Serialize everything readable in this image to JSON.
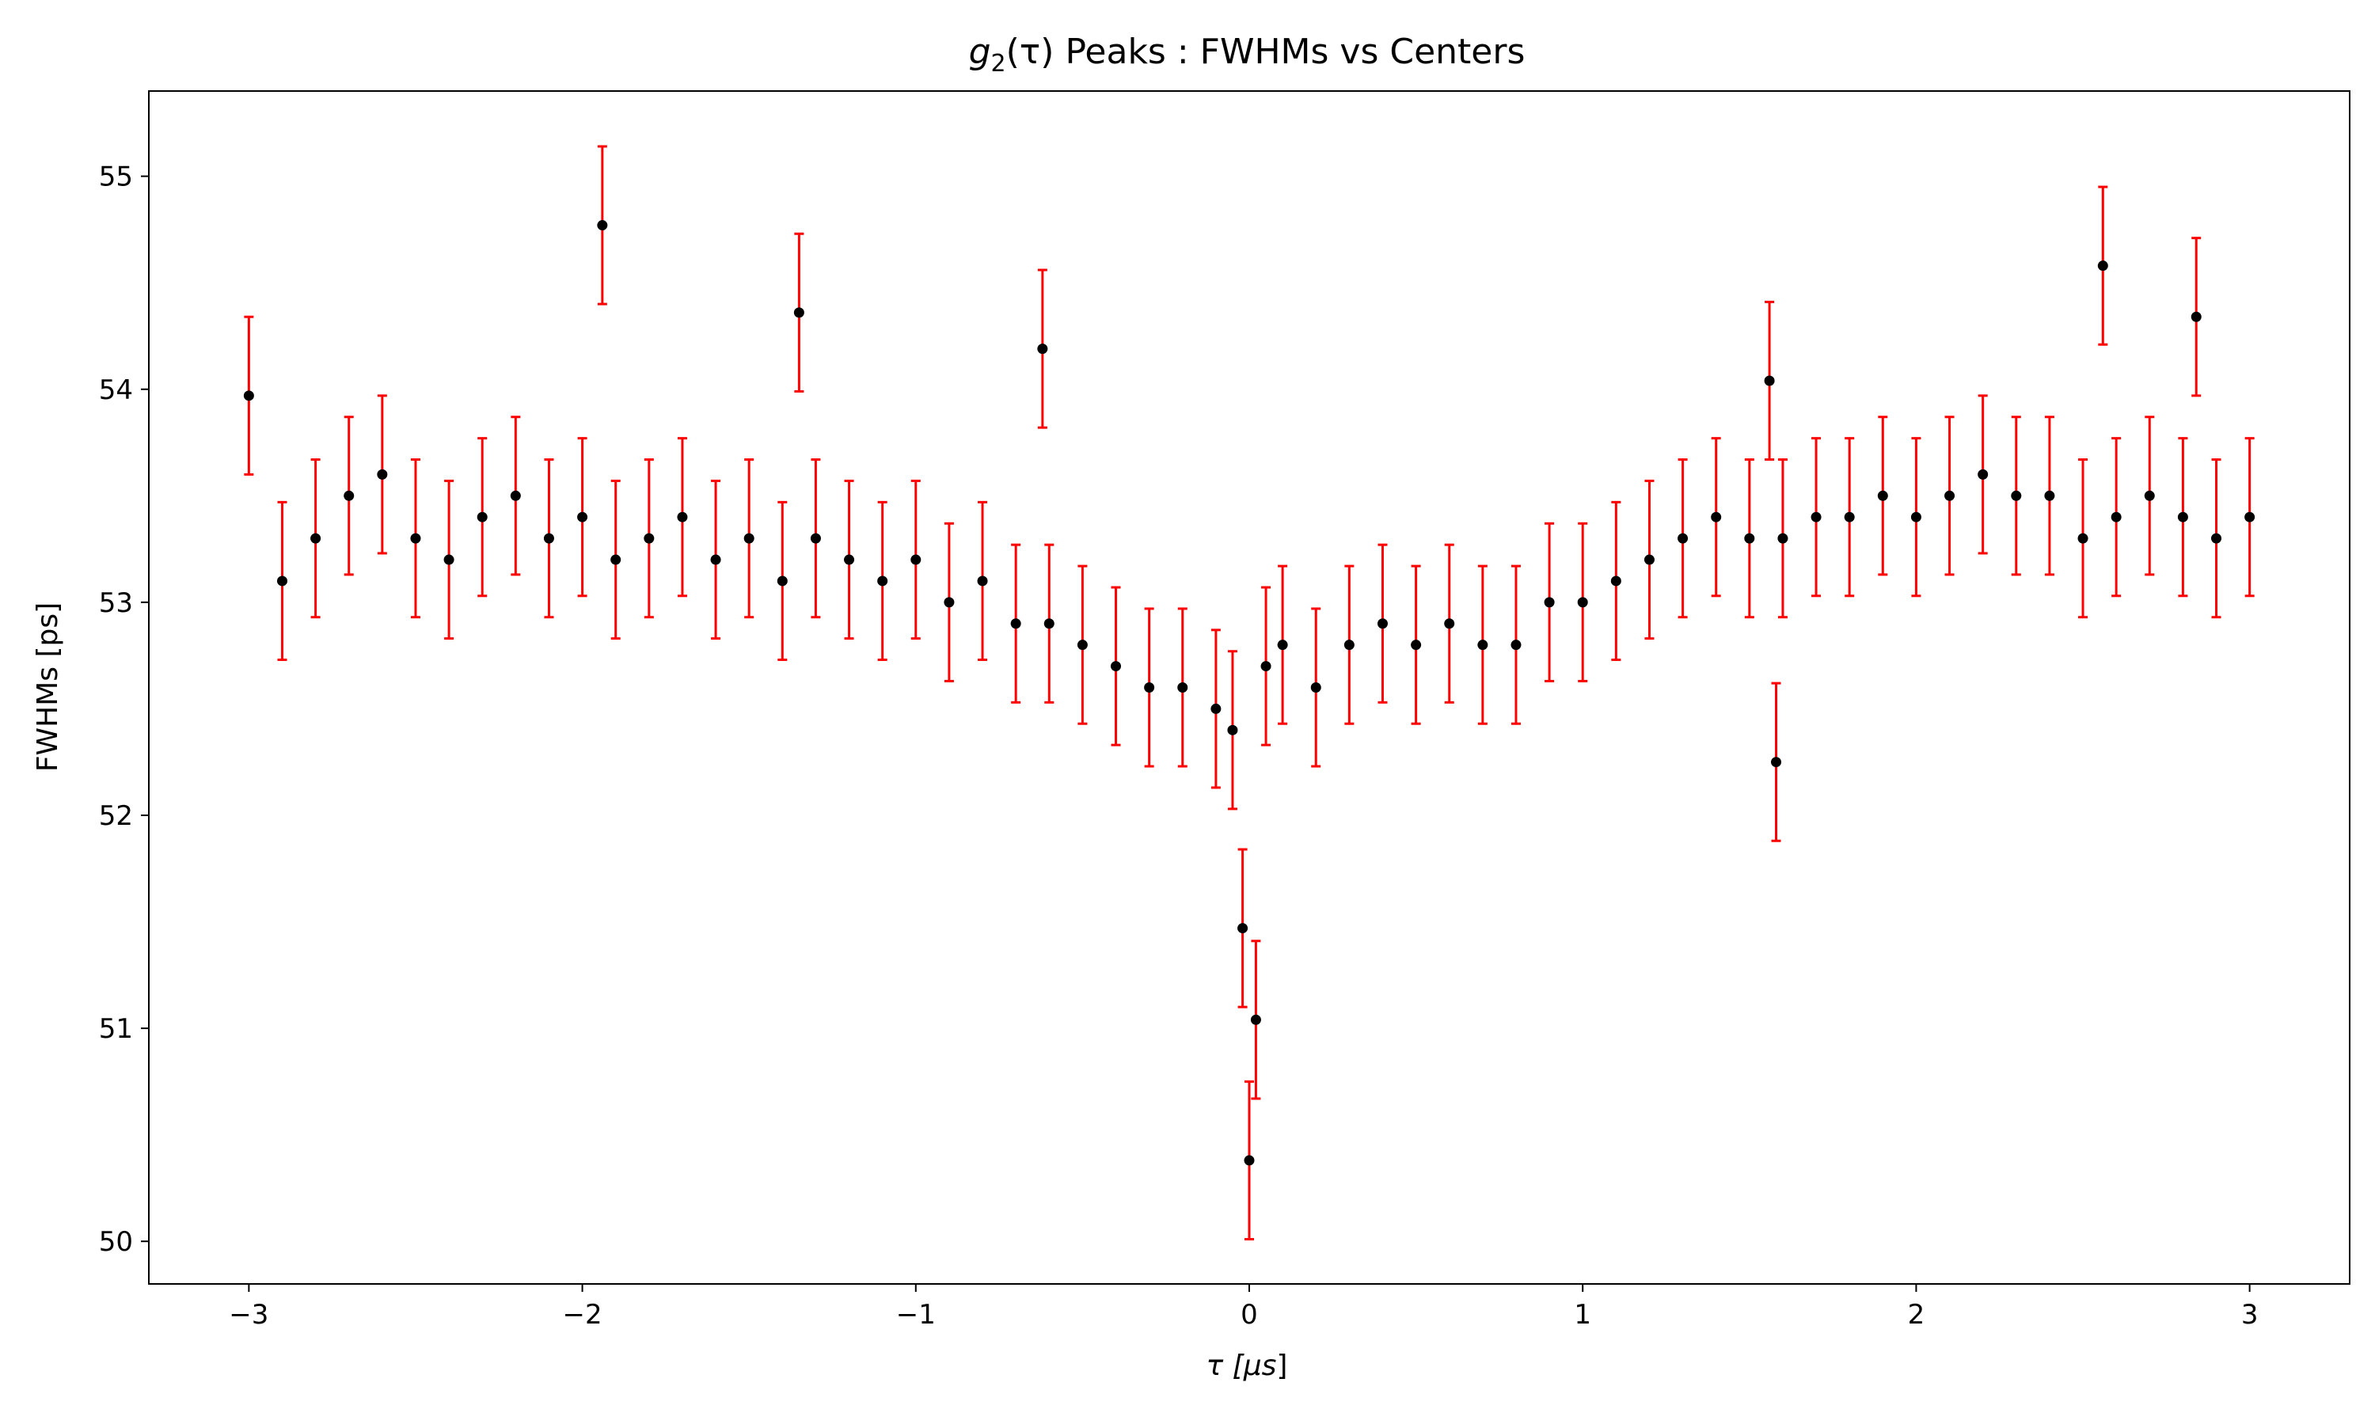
{
  "chart_data": {
    "type": "scatter",
    "title": {
      "pre": "g",
      "sub": "2",
      "post": "(τ) Peaks : FWHMs vs Centers"
    },
    "xlabel": {
      "pre": "τ [",
      "mu": "μs",
      "post": "]"
    },
    "ylabel": "FWHMs [ps]",
    "xlim": [
      -3.3,
      3.3
    ],
    "ylim": [
      49.8,
      55.4
    ],
    "xticks": [
      -3,
      -2,
      -1,
      0,
      1,
      2,
      3
    ],
    "xtick_labels": [
      "−3",
      "−2",
      "−1",
      "0",
      "1",
      "2",
      "3"
    ],
    "yticks": [
      50,
      51,
      52,
      53,
      54,
      55
    ],
    "ytick_labels": [
      "50",
      "51",
      "52",
      "53",
      "54",
      "55"
    ],
    "grid": false,
    "legend": "none",
    "colors": {
      "marker": "#000000",
      "errorbar": "#ff0000",
      "axes": "#000000"
    },
    "error_half_width": 0.37,
    "series": [
      {
        "x": [
          -3.0,
          -2.9,
          -2.8,
          -2.7,
          -2.6,
          -2.5,
          -2.4,
          -2.3,
          -2.2,
          -2.1,
          -2.0,
          -1.94,
          -1.9,
          -1.8,
          -1.7,
          -1.6,
          -1.5,
          -1.4,
          -1.35,
          -1.3,
          -1.2,
          -1.1,
          -1.0,
          -0.9,
          -0.8,
          -0.7,
          -0.62,
          -0.6,
          -0.5,
          -0.4,
          -0.3,
          -0.2,
          -0.1,
          -0.05,
          -0.02,
          0.0,
          0.02,
          0.05,
          0.1,
          0.2,
          0.3,
          0.4,
          0.5,
          0.6,
          0.7,
          0.8,
          0.9,
          1.0,
          1.1,
          1.2,
          1.3,
          1.4,
          1.5,
          1.56,
          1.58,
          1.6,
          1.7,
          1.8,
          1.9,
          2.0,
          2.1,
          2.2,
          2.3,
          2.4,
          2.5,
          2.56,
          2.6,
          2.7,
          2.8,
          2.84,
          2.9,
          3.0
        ],
        "y": [
          53.97,
          53.1,
          53.3,
          53.5,
          53.6,
          53.3,
          53.2,
          53.4,
          53.5,
          53.3,
          53.4,
          54.77,
          53.2,
          53.3,
          53.4,
          53.2,
          53.3,
          53.1,
          54.36,
          53.3,
          53.2,
          53.1,
          53.2,
          53.0,
          53.1,
          52.9,
          54.19,
          52.9,
          52.8,
          52.7,
          52.6,
          52.6,
          52.5,
          52.4,
          51.47,
          50.38,
          51.04,
          52.7,
          52.8,
          52.6,
          52.8,
          52.9,
          52.8,
          52.9,
          52.8,
          52.8,
          53.0,
          53.0,
          53.1,
          53.2,
          53.3,
          53.4,
          53.3,
          54.04,
          52.25,
          53.3,
          53.4,
          53.4,
          53.5,
          53.4,
          53.5,
          53.6,
          53.5,
          53.5,
          53.3,
          54.58,
          53.4,
          53.5,
          53.4,
          54.34,
          53.3,
          53.4
        ]
      }
    ]
  }
}
